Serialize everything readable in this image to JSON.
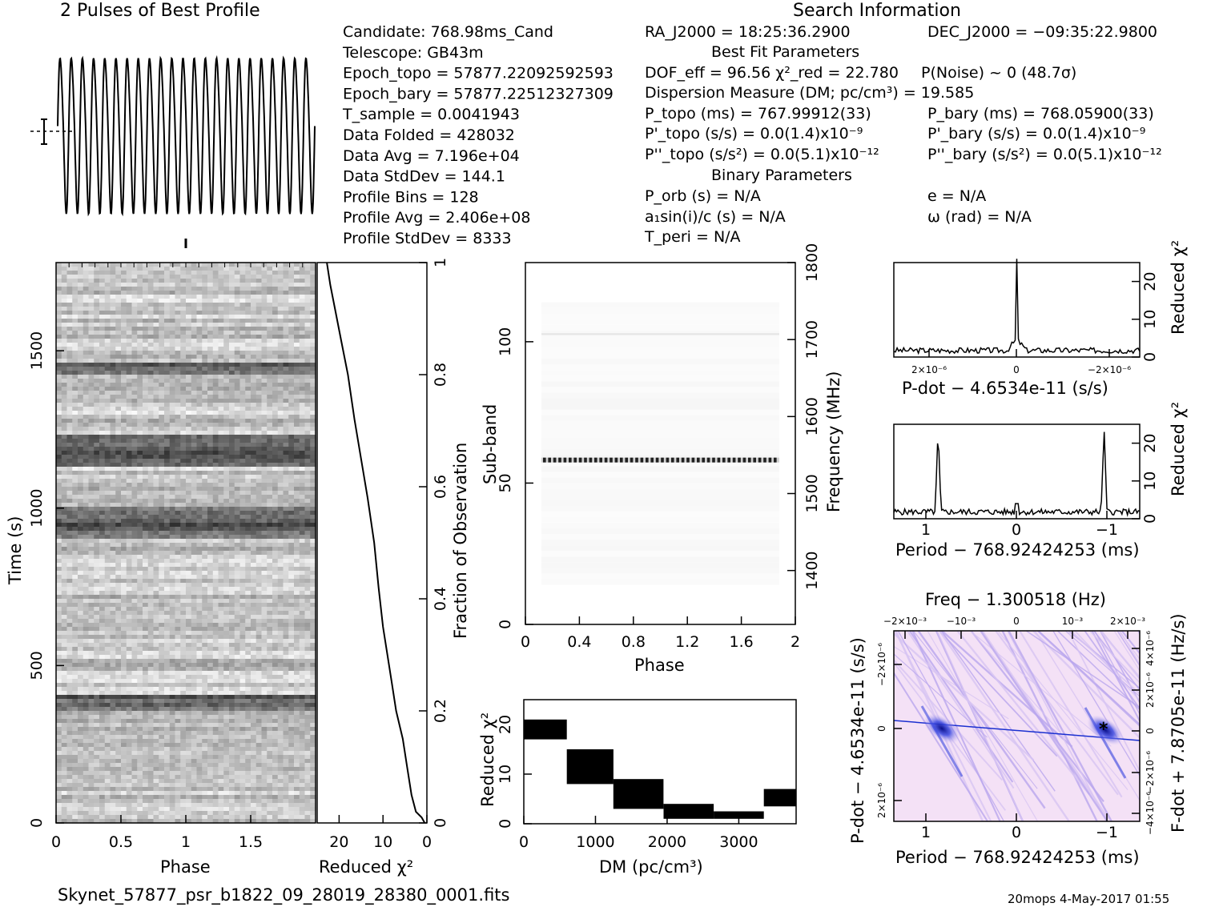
{
  "file_name": "Skynet_57877_psr_b1822_09_28019_28380_0001.fits",
  "stamp": "20mops   4-May-2017 01:55",
  "profile_title": "2 Pulses of Best Profile",
  "search_title": "Search Information",
  "candidate_block": [
    "Candidate:  768.98ms_Cand",
    "Telescope:  GB43m",
    "Epoch_topo = 57877.22092592593",
    "Epoch_bary = 57877.22512327309",
    "T_sample       =  0.0041943",
    "Data Folded     =  428032",
    "Data Avg         =  7.196e+04",
    "Data StdDev    =  144.1",
    "Profile Bins     =  128",
    "Profile Avg      =  2.406e+08",
    "Profile StdDev  =  8333"
  ],
  "search_block": {
    "ra": "RA_J2000 = 18:25:36.2900",
    "dec": "DEC_J2000 = −09:35:22.9800",
    "best_fit_title": "Best Fit Parameters",
    "dof": "DOF_eff = 96.56   χ²_red = 22.780",
    "pnoise": "P(Noise) ~ 0    (48.7σ)",
    "dm": "Dispersion Measure (DM; pc/cm³) = 19.585",
    "ptopo": "P_topo (ms) =  767.99912(33)",
    "pbary": "P_bary (ms) =  768.05900(33)",
    "pdtopo": "P'_topo (s/s) = 0.0(1.4)x10⁻⁹",
    "pdbary": "P'_bary (s/s) = 0.0(1.4)x10⁻⁹",
    "pddtopo": "P''_topo (s/s²) = 0.0(5.1)x10⁻¹²",
    "pddbary": "P''_bary (s/s²) = 0.0(5.1)x10⁻¹²",
    "binary_title": "Binary Parameters",
    "porb": "P_orb (s) = N/A",
    "ecc": "e = N/A",
    "a1": "a₁sin(i)/c (s) = N/A",
    "omega": "ω (rad) = N/A",
    "tperi": "T_peri = N/A"
  },
  "chart_data": [
    {
      "id": "profile",
      "type": "line",
      "title": "2 Pulses of Best Profile",
      "xlim": [
        0,
        2
      ],
      "pulses": 23,
      "series": [
        {
          "note": "sinusoid-like profile, 23 cycles over 2 rotations"
        }
      ]
    },
    {
      "id": "time-phase",
      "type": "heatmap",
      "xlabel": "Phase",
      "ylabel": "Time (s)",
      "xlim": [
        0,
        2
      ],
      "ylim": [
        0,
        1780
      ],
      "xticks": [
        "0",
        "0.5",
        "1",
        "1.5"
      ],
      "yticks": [
        "0",
        "500",
        "1000",
        "1500"
      ],
      "dark_rows": [
        [
          360,
          410
        ],
        [
          900,
          1000
        ],
        [
          1130,
          1230
        ],
        [
          1430,
          1460
        ]
      ]
    },
    {
      "id": "time-chi",
      "type": "line",
      "xlabel": "Reduced χ²",
      "ylabel": "Fraction of Observation",
      "xlim": [
        25,
        0
      ],
      "ylim": [
        0,
        1
      ],
      "xticks": [
        "20",
        "10",
        "0"
      ],
      "yticks": [
        "0",
        "0.2",
        "0.4",
        "0.6",
        "0.8",
        "1"
      ],
      "points": [
        [
          0.5,
          0
        ],
        [
          1.2,
          0.01
        ],
        [
          2.5,
          0.02
        ],
        [
          3.5,
          0.05
        ],
        [
          4.5,
          0.1
        ],
        [
          5.5,
          0.15
        ],
        [
          7,
          0.2
        ],
        [
          8,
          0.25
        ],
        [
          9,
          0.3
        ],
        [
          10,
          0.35
        ],
        [
          11,
          0.42
        ],
        [
          12,
          0.5
        ],
        [
          13.5,
          0.58
        ],
        [
          15,
          0.65
        ],
        [
          16.5,
          0.72
        ],
        [
          18,
          0.8
        ],
        [
          19.5,
          0.86
        ],
        [
          21,
          0.92
        ],
        [
          22,
          0.96
        ],
        [
          22.8,
          1
        ]
      ]
    },
    {
      "id": "subband-phase",
      "type": "heatmap",
      "xlabel": "Phase",
      "ylabel": "Sub-band",
      "y2label": "Frequency (MHz)",
      "xlim": [
        0,
        2
      ],
      "ylim": [
        0,
        128
      ],
      "xticks": [
        "0",
        "0.4",
        "0.8",
        "1.2",
        "1.6",
        "2"
      ],
      "yticks": [
        "0",
        "50",
        "100"
      ],
      "y2ticks": [
        "1400",
        "1500",
        "1600",
        "1700",
        "1800"
      ],
      "dark_band": 58
    },
    {
      "id": "dm-chi",
      "type": "line",
      "xlabel": "DM (pc/cm³)",
      "ylabel": "Reduced χ²",
      "xlim": [
        0,
        3800
      ],
      "ylim": [
        0,
        25
      ],
      "xticks": [
        "0",
        "1000",
        "2000",
        "3000"
      ],
      "yticks": [
        "0",
        "10",
        "20"
      ],
      "blocks": [
        [
          0,
          600,
          17,
          21
        ],
        [
          600,
          1250,
          8,
          15
        ],
        [
          1250,
          1950,
          3,
          9
        ],
        [
          1950,
          2650,
          1,
          4
        ],
        [
          2650,
          3350,
          1,
          2.5
        ],
        [
          3350,
          3800,
          3.5,
          7
        ]
      ]
    },
    {
      "id": "pdot-chi",
      "type": "line",
      "xlabel": "P-dot − 4.6534e-11 (s/s)",
      "ylabel": "Reduced χ²",
      "xticks": [
        "2×10⁻⁶",
        "0",
        "−2×10⁻⁶"
      ],
      "yticks": [
        "0",
        "10",
        "20"
      ],
      "ylim": [
        0,
        25
      ],
      "peak": {
        "x": 0,
        "y": 23
      }
    },
    {
      "id": "period-chi",
      "type": "line",
      "xlabel": "Period − 768.92424253 (ms)",
      "ylabel": "Reduced χ²",
      "xticks": [
        "1",
        "0",
        "−1"
      ],
      "yticks": [
        "0",
        "10",
        "20"
      ],
      "ylim": [
        0,
        25
      ],
      "peaks": [
        {
          "x": 0.9,
          "y": 22
        },
        {
          "x": -0.98,
          "y": 22
        }
      ]
    },
    {
      "id": "period-pdot",
      "type": "heatmap",
      "title": "Freq − 1.300518 (Hz)",
      "xlabel": "Period − 768.92424253 (ms)",
      "ylabel": "P-dot − 4.6534e-11 (s/s)",
      "y2label": "F-dot + 7.8705e-11 (Hz/s)",
      "xticks": [
        "1",
        "0",
        "−1"
      ],
      "x2ticks": [
        "−2×10⁻³",
        "−10⁻³",
        "0",
        "10⁻³",
        "2×10⁻³"
      ],
      "yticks": [
        "2×10⁻⁶",
        "0",
        "−2×10⁻⁶"
      ],
      "y2ticks": [
        "−4×10⁻⁶",
        "−2×10⁻⁶",
        "0",
        "2×10⁻⁶",
        "4×10⁻⁶"
      ],
      "best": {
        "x": -0.9,
        "y": 0
      }
    }
  ],
  "colors": {
    "axis": "#000000",
    "map_light": "#f3dff7",
    "map_dark": "#1a2fd0"
  }
}
